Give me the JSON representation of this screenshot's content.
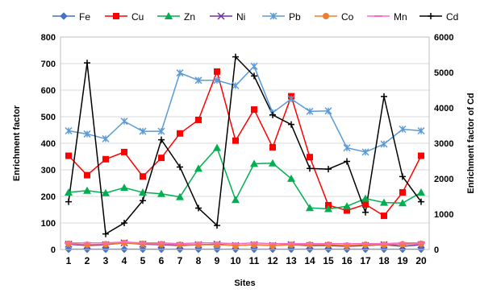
{
  "chart_data": {
    "type": "line",
    "x": [
      1,
      2,
      3,
      4,
      5,
      6,
      7,
      8,
      9,
      10,
      11,
      12,
      13,
      14,
      15,
      16,
      17,
      18,
      19,
      20
    ],
    "xlabel": "Sites",
    "ylabel": "Enrichment factor",
    "ylabel_right": "Enrichment factor of Cd",
    "ylim": [
      0,
      800
    ],
    "ylim_right": [
      0,
      6000
    ],
    "yticks": [
      0,
      100,
      200,
      300,
      400,
      500,
      600,
      700,
      800
    ],
    "yticks_right": [
      0,
      1000,
      2000,
      3000,
      4000,
      5000,
      6000
    ],
    "grid": true,
    "legend_position": "top",
    "series": [
      {
        "name": "Fe",
        "axis": "left",
        "color": "#4472C4",
        "marker": "diamond",
        "values": [
          1,
          1,
          1,
          1,
          1,
          1,
          1,
          1,
          1,
          1,
          1,
          1,
          1,
          1,
          1,
          1,
          1,
          1,
          1,
          1
        ]
      },
      {
        "name": "Cu",
        "axis": "left",
        "color": "#FF0000",
        "marker": "square",
        "values": [
          353,
          280,
          340,
          367,
          275,
          345,
          437,
          488,
          670,
          410,
          527,
          385,
          577,
          348,
          167,
          147,
          170,
          127,
          215,
          353
        ]
      },
      {
        "name": "Zn",
        "axis": "left",
        "color": "#00B050",
        "marker": "triangle",
        "values": [
          215,
          222,
          213,
          233,
          215,
          210,
          198,
          305,
          383,
          187,
          323,
          325,
          267,
          157,
          153,
          163,
          192,
          177,
          175,
          215
        ]
      },
      {
        "name": "Ni",
        "axis": "left",
        "color": "#7030A0",
        "marker": "x",
        "values": [
          20,
          15,
          18,
          25,
          20,
          18,
          15,
          18,
          20,
          15,
          18,
          15,
          18,
          15,
          15,
          12,
          15,
          18,
          12,
          18
        ]
      },
      {
        "name": "Pb",
        "axis": "left",
        "color": "#5B9BD5",
        "marker": "asterisk",
        "values": [
          447,
          435,
          417,
          483,
          445,
          445,
          665,
          637,
          637,
          617,
          690,
          515,
          567,
          520,
          522,
          383,
          367,
          397,
          453,
          447
        ]
      },
      {
        "name": "Co",
        "axis": "left",
        "color": "#ED7D31",
        "marker": "circle",
        "values": [
          22,
          18,
          20,
          25,
          22,
          20,
          18,
          18,
          18,
          15,
          18,
          15,
          18,
          18,
          18,
          15,
          18,
          18,
          20,
          22
        ]
      },
      {
        "name": "Mn",
        "axis": "left",
        "color": "#FF66CC",
        "marker": "dash",
        "values": [
          25,
          25,
          25,
          28,
          25,
          25,
          22,
          25,
          25,
          22,
          25,
          22,
          22,
          22,
          22,
          22,
          22,
          22,
          25,
          25
        ]
      },
      {
        "name": "Cd",
        "axis": "right",
        "color": "#000000",
        "marker": "plus",
        "values": [
          1350,
          5270,
          440,
          750,
          1380,
          3100,
          2330,
          1170,
          680,
          5440,
          4900,
          3800,
          3530,
          2290,
          2270,
          2490,
          1050,
          4320,
          2060,
          1350
        ]
      }
    ]
  }
}
